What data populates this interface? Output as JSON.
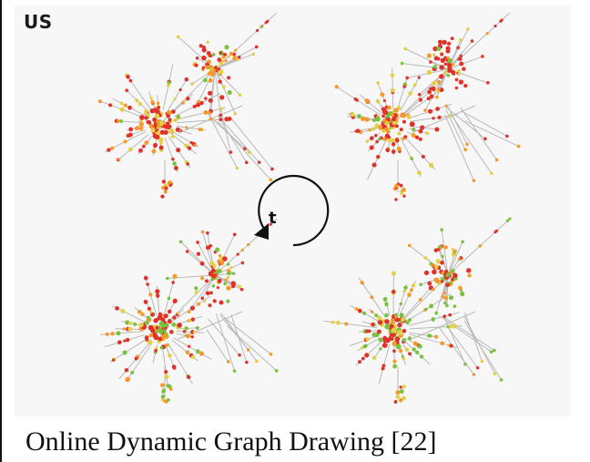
{
  "figure": {
    "corner_label": "US",
    "cycle_label": "t",
    "caption": "Online Dynamic Graph Drawing [22]",
    "colors": {
      "edge": "#b9b9b9",
      "node_red": "#e0312b",
      "node_orange": "#f39a2b",
      "node_yellow": "#e3d04a",
      "node_green": "#78c23f",
      "arrow": "#111111"
    },
    "graphs": [
      {
        "name": "graph-top-left",
        "green_share": 0.05
      },
      {
        "name": "graph-top-right",
        "green_share": 0.05
      },
      {
        "name": "graph-bottom-left",
        "green_share": 0.25
      },
      {
        "name": "graph-bottom-right",
        "green_share": 0.3
      }
    ]
  }
}
